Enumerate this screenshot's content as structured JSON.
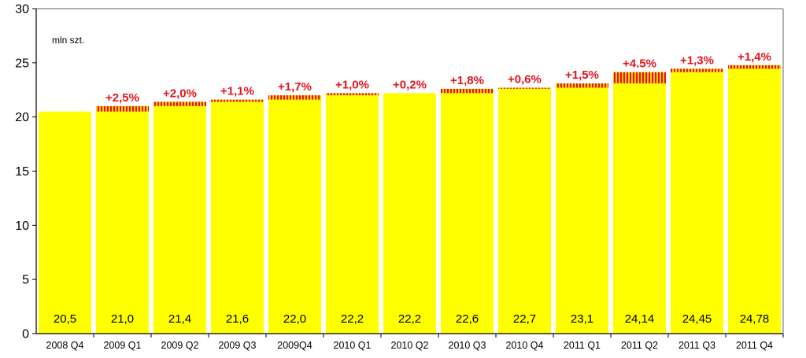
{
  "chart_data": {
    "type": "bar",
    "unit_label": "mln szt.",
    "ylim": [
      0,
      30
    ],
    "yticks": [
      0,
      5,
      10,
      15,
      20,
      25,
      30
    ],
    "grid": false,
    "categories": [
      "2008 Q4",
      "2009 Q1",
      "2009 Q2",
      "2009 Q3",
      "2009Q4",
      "2010 Q1",
      "2010 Q2",
      "2010 Q3",
      "2010 Q4",
      "2011 Q1",
      "2011 Q2",
      "2011 Q3",
      "2011 Q4"
    ],
    "values": [
      20.5,
      21.0,
      21.4,
      21.6,
      22.0,
      22.2,
      22.2,
      22.6,
      22.7,
      23.1,
      24.14,
      24.45,
      24.78
    ],
    "value_labels": [
      "20,5",
      "21,0",
      "21,4",
      "21,6",
      "22,0",
      "22,2",
      "22,2",
      "22,6",
      "22,7",
      "23,1",
      "24,14",
      "24,45",
      "24,78"
    ],
    "change_labels": [
      "",
      "+2,5%",
      "+2,0%",
      "+1,1%",
      "+1,7%",
      "+1,0%",
      "+0,2%",
      "+1,8%",
      "+0,6%",
      "+1,5%",
      "+4.5%",
      "+1,3%",
      "+1,4%"
    ],
    "colors": {
      "bar": "#ffff00",
      "increment": "#ffcc00",
      "hatch": "#e3141b",
      "change_text": "#e3141b",
      "axis": "#000000",
      "frame": "#808080"
    }
  }
}
